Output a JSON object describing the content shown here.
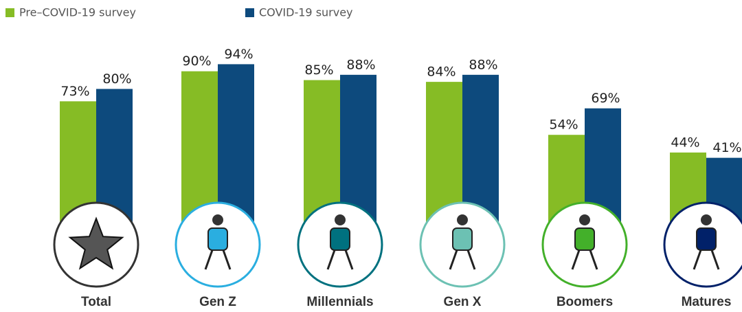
{
  "chart_data": {
    "type": "bar",
    "categories": [
      "Total",
      "Gen Z",
      "Millennials",
      "Gen X",
      "Boomers",
      "Matures"
    ],
    "series": [
      {
        "name": "Pre–COVID-19 survey",
        "color": "#86bc25",
        "values": [
          73,
          90,
          85,
          84,
          54,
          44
        ],
        "value_labels": [
          "73%",
          "90%",
          "85%",
          "84%",
          "54%",
          "44%"
        ]
      },
      {
        "name": "COVID-19 survey",
        "color": "#0d4a7d",
        "values": [
          80,
          94,
          88,
          88,
          69,
          41
        ],
        "value_labels": [
          "80%",
          "94%",
          "88%",
          "88%",
          "69%",
          "41%"
        ]
      }
    ],
    "ylim": [
      0,
      100
    ]
  }
}
